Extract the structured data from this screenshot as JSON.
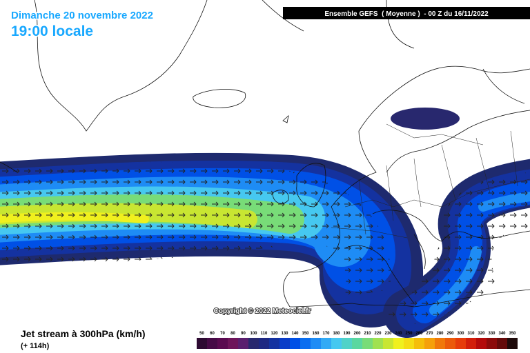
{
  "header": {
    "date": "Dimanche 20 novembre 2022",
    "time": "19:00 locale",
    "run": "Ensemble GEFS  ( Moyenne )  - 00 Z du 16/11/2022"
  },
  "credit": "Copyright © 2022 Meteociel.fr",
  "footer": {
    "parameter": "Jet stream à 300hPa (km/h)",
    "lead": "(+ 114h)"
  },
  "legend": {
    "levels": [
      50,
      60,
      70,
      80,
      90,
      100,
      110,
      120,
      130,
      140,
      150,
      160,
      170,
      180,
      190,
      200,
      210,
      220,
      230,
      240,
      250,
      260,
      270,
      280,
      290,
      300,
      310,
      320,
      330,
      340,
      350
    ],
    "colors": [
      "#2d0a32",
      "#460a46",
      "#5a0a50",
      "#6e145a",
      "#5a1e6e",
      "#28286e",
      "#1e2882",
      "#1432a0",
      "#0a3cc8",
      "#0050e6",
      "#0a6ef0",
      "#1e8cf5",
      "#32aaf5",
      "#46c8f0",
      "#50d2c8",
      "#5ad7a0",
      "#78dc78",
      "#a0e150",
      "#c8e632",
      "#f0f01e",
      "#f5dc14",
      "#f5be0a",
      "#f5a00a",
      "#f0780a",
      "#eb5a0a",
      "#e63c0a",
      "#d21e0a",
      "#b40a0a",
      "#8c0a0a",
      "#640a0a",
      "#1e0a0a"
    ]
  }
}
